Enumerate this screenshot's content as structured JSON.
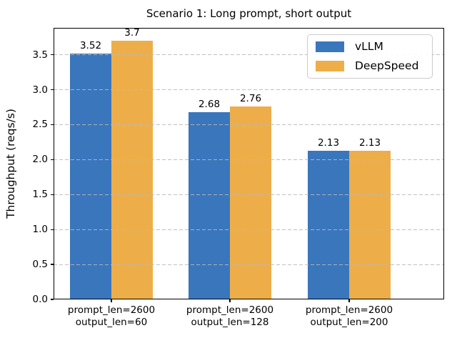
{
  "chart_data": {
    "type": "bar",
    "title": "Scenario 1: Long prompt, short output",
    "xlabel": "",
    "ylabel": "Throughput (reqs/s)",
    "categories": [
      "prompt_len=2600\noutput_len=60",
      "prompt_len=2600\noutput_len=128",
      "prompt_len=2600\noutput_len=200"
    ],
    "series": [
      {
        "name": "vLLM",
        "color": "#3a76bc",
        "values": [
          3.52,
          2.68,
          2.13
        ],
        "labels": [
          "3.52",
          "2.68",
          "2.13"
        ]
      },
      {
        "name": "DeepSpeed",
        "color": "#edae49",
        "values": [
          3.7,
          2.76,
          2.13
        ],
        "labels": [
          "3.7",
          "2.76",
          "2.13"
        ]
      }
    ],
    "ylim": [
      0,
      3.885
    ],
    "yticks": [
      "0.0",
      "0.5",
      "1.0",
      "1.5",
      "2.0",
      "2.5",
      "3.0",
      "3.5"
    ],
    "grid": "dashed-horizontal",
    "grid_color": "#b9b9b9",
    "legend_position": "upper right",
    "background_color": "#ffffff",
    "text_color": "#000000"
  }
}
